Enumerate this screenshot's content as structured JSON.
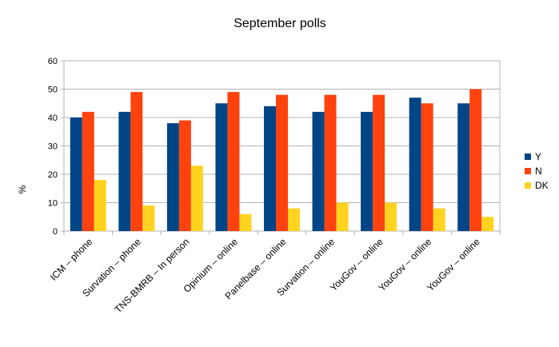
{
  "chart_data": {
    "type": "bar",
    "title": "September polls",
    "xlabel": "",
    "ylabel": "%",
    "ylim": [
      0,
      60
    ],
    "yticks": [
      0,
      10,
      20,
      30,
      40,
      50,
      60
    ],
    "grid": true,
    "legend_position": "right",
    "categories": [
      "ICM – phone",
      "Survation – phone",
      "TNS-BMRB – In person",
      "Opinium – online",
      "Panelbase – online",
      "Survation – online",
      "YouGov – online",
      "YouGov – online",
      "YouGov – online"
    ],
    "series": [
      {
        "name": "Y",
        "color": "#004586",
        "values": [
          40,
          42,
          38,
          45,
          44,
          42,
          42,
          47,
          45
        ]
      },
      {
        "name": "N",
        "color": "#ff420e",
        "values": [
          42,
          49,
          39,
          49,
          48,
          48,
          48,
          45,
          50
        ]
      },
      {
        "name": "DK",
        "color": "#ffd320",
        "values": [
          18,
          9,
          23,
          6,
          8,
          10,
          10,
          8,
          5
        ]
      }
    ]
  }
}
